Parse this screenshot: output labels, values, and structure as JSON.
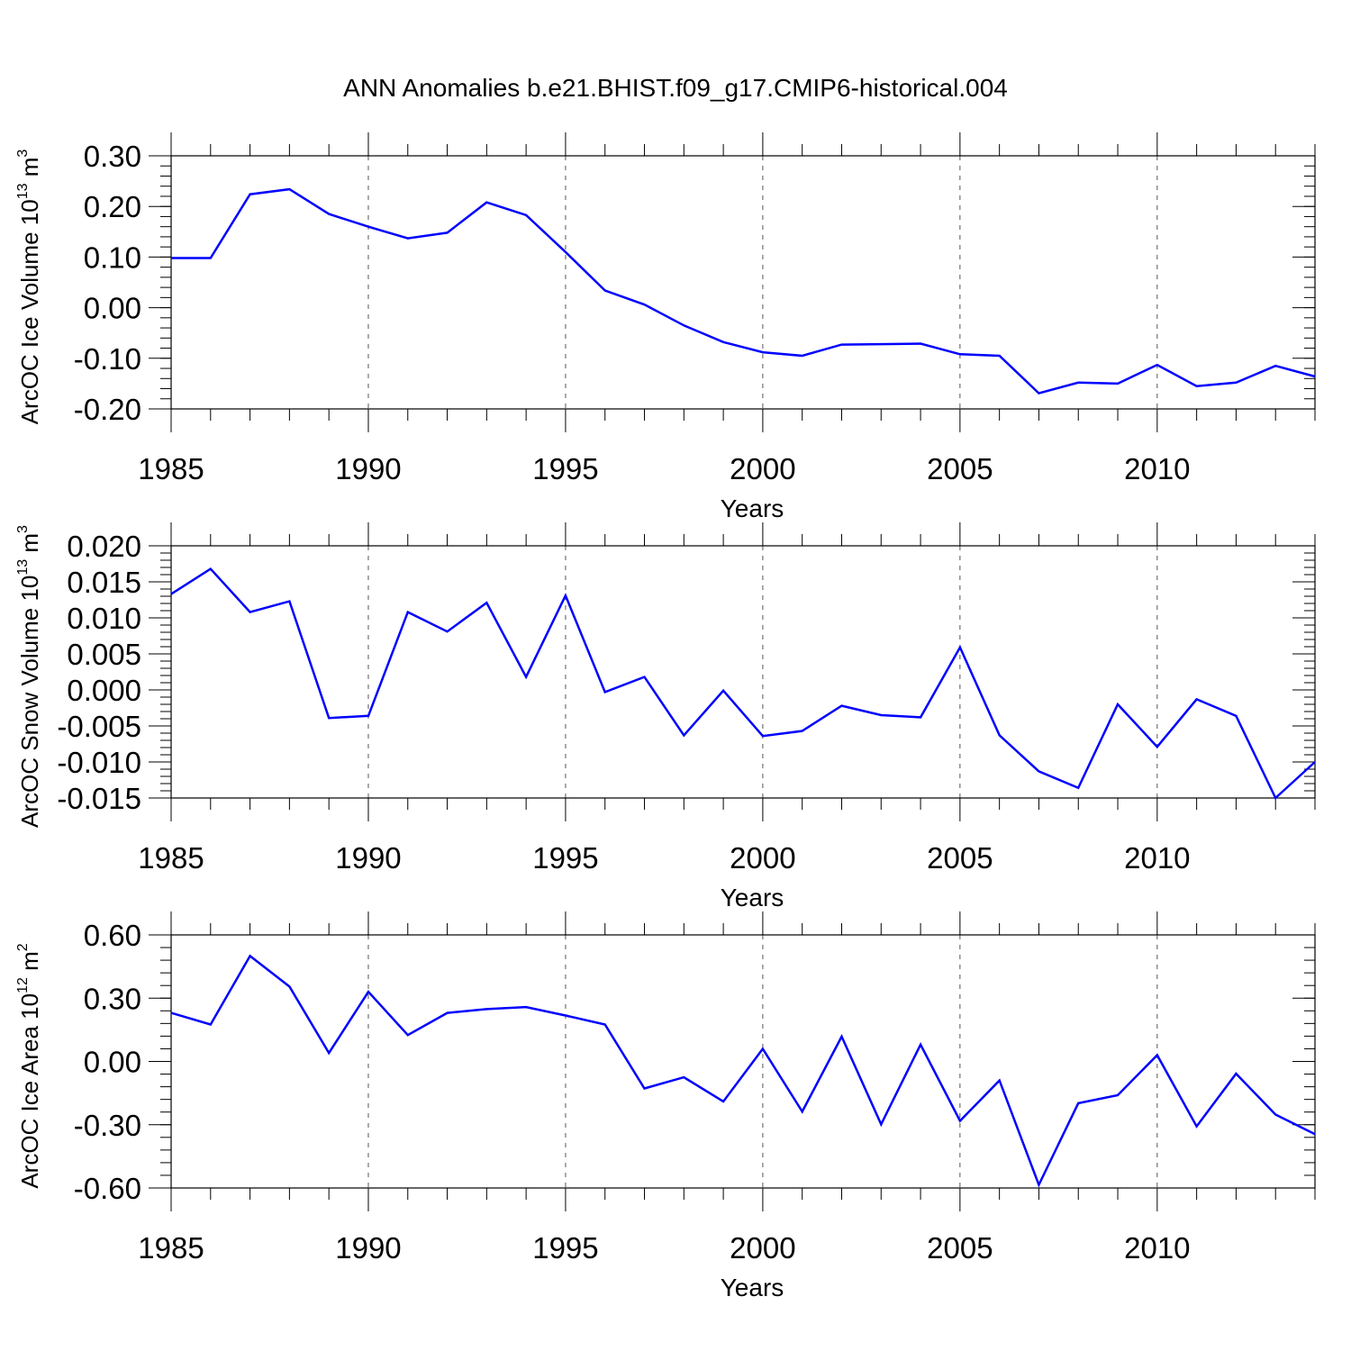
{
  "title": "ANN Anomalies b.e21.BHIST.f09_g17.CMIP6-historical.004",
  "colors": {
    "series": "#0000ff",
    "axis": "#000000",
    "grid": "#555555"
  },
  "chart_data": [
    {
      "type": "line",
      "name": "ice-volume",
      "xlabel": "Years",
      "ylabel_prefix": "ArcOC Ice Volume 10",
      "ylabel_exp": "13",
      "ylabel_unit": " m",
      "ylabel_unit_exp": "3",
      "xlim": [
        1985,
        2014
      ],
      "ylim": [
        -0.2,
        0.3
      ],
      "x_ticks": [
        1985,
        1990,
        1995,
        2000,
        2005,
        2010
      ],
      "x_tick_labels": [
        "1985",
        "1990",
        "1995",
        "2000",
        "2005",
        "2010"
      ],
      "y_ticks": [
        -0.2,
        -0.1,
        0.0,
        0.1,
        0.2,
        0.3
      ],
      "y_tick_labels": [
        "-0.20",
        "-0.10",
        "0.00",
        "0.10",
        "0.20",
        "0.30"
      ],
      "y_minor_step": 0.02,
      "x": [
        1985,
        1986,
        1987,
        1988,
        1989,
        1990,
        1991,
        1992,
        1993,
        1994,
        1995,
        1996,
        1997,
        1998,
        1999,
        2000,
        2001,
        2002,
        2003,
        2004,
        2005,
        2006,
        2007,
        2008,
        2009,
        2010,
        2011,
        2012,
        2013,
        2014
      ],
      "values": [
        0.098,
        0.098,
        0.224,
        0.234,
        0.185,
        0.16,
        0.137,
        0.148,
        0.208,
        0.183,
        0.11,
        0.034,
        0.006,
        -0.035,
        -0.068,
        -0.088,
        -0.095,
        -0.073,
        -0.072,
        -0.071,
        -0.092,
        -0.095,
        -0.169,
        -0.148,
        -0.15,
        -0.113,
        -0.155,
        -0.148,
        -0.115,
        -0.136
      ]
    },
    {
      "type": "line",
      "name": "snow-volume",
      "xlabel": "Years",
      "ylabel_prefix": "ArcOC Snow Volume 10",
      "ylabel_exp": "13",
      "ylabel_unit": " m",
      "ylabel_unit_exp": "3",
      "xlim": [
        1985,
        2014
      ],
      "ylim": [
        -0.015,
        0.02
      ],
      "x_ticks": [
        1985,
        1990,
        1995,
        2000,
        2005,
        2010
      ],
      "x_tick_labels": [
        "1985",
        "1990",
        "1995",
        "2000",
        "2005",
        "2010"
      ],
      "y_ticks": [
        -0.015,
        -0.01,
        -0.005,
        0.0,
        0.005,
        0.01,
        0.015,
        0.02
      ],
      "y_tick_labels": [
        "-0.015",
        "-0.010",
        "-0.005",
        "0.000",
        "0.005",
        "0.010",
        "0.015",
        "0.020"
      ],
      "y_minor_step": 0.001,
      "x": [
        1985,
        1986,
        1987,
        1988,
        1989,
        1990,
        1991,
        1992,
        1993,
        1994,
        1995,
        1996,
        1997,
        1998,
        1999,
        2000,
        2001,
        2002,
        2003,
        2004,
        2005,
        2006,
        2007,
        2008,
        2009,
        2010,
        2011,
        2012,
        2013,
        2014
      ],
      "values": [
        0.0133,
        0.0168,
        0.0108,
        0.0123,
        -0.0039,
        -0.0036,
        0.0108,
        0.0081,
        0.0121,
        0.0018,
        0.0131,
        -0.0003,
        0.0018,
        -0.0063,
        -0.0001,
        -0.0064,
        -0.0057,
        -0.0022,
        -0.0035,
        -0.0038,
        0.0059,
        -0.0063,
        -0.0113,
        -0.0136,
        -0.002,
        -0.0079,
        -0.0013,
        -0.0036,
        -0.015,
        -0.01
      ]
    },
    {
      "type": "line",
      "name": "ice-area",
      "xlabel": "Years",
      "ylabel_prefix": "ArcOC Ice Area 10",
      "ylabel_exp": "12",
      "ylabel_unit": " m",
      "ylabel_unit_exp": "2",
      "xlim": [
        1985,
        2014
      ],
      "ylim": [
        -0.6,
        0.6
      ],
      "x_ticks": [
        1985,
        1990,
        1995,
        2000,
        2005,
        2010
      ],
      "x_tick_labels": [
        "1985",
        "1990",
        "1995",
        "2000",
        "2005",
        "2010"
      ],
      "y_ticks": [
        -0.6,
        -0.3,
        0.0,
        0.3,
        0.6
      ],
      "y_tick_labels": [
        "-0.60",
        "-0.30",
        "0.00",
        "0.30",
        "0.60"
      ],
      "y_minor_step": 0.06,
      "x": [
        1985,
        1986,
        1987,
        1988,
        1989,
        1990,
        1991,
        1992,
        1993,
        1994,
        1995,
        1996,
        1997,
        1998,
        1999,
        2000,
        2001,
        2002,
        2003,
        2004,
        2005,
        2006,
        2007,
        2008,
        2009,
        2010,
        2011,
        2012,
        2013,
        2014
      ],
      "values": [
        0.23,
        0.175,
        0.5,
        0.355,
        0.04,
        0.33,
        0.125,
        0.23,
        0.248,
        0.258,
        0.218,
        0.175,
        -0.128,
        -0.075,
        -0.19,
        0.06,
        -0.238,
        0.118,
        -0.298,
        0.08,
        -0.282,
        -0.09,
        -0.585,
        -0.198,
        -0.16,
        0.03,
        -0.308,
        -0.058,
        -0.252,
        -0.345
      ]
    }
  ]
}
